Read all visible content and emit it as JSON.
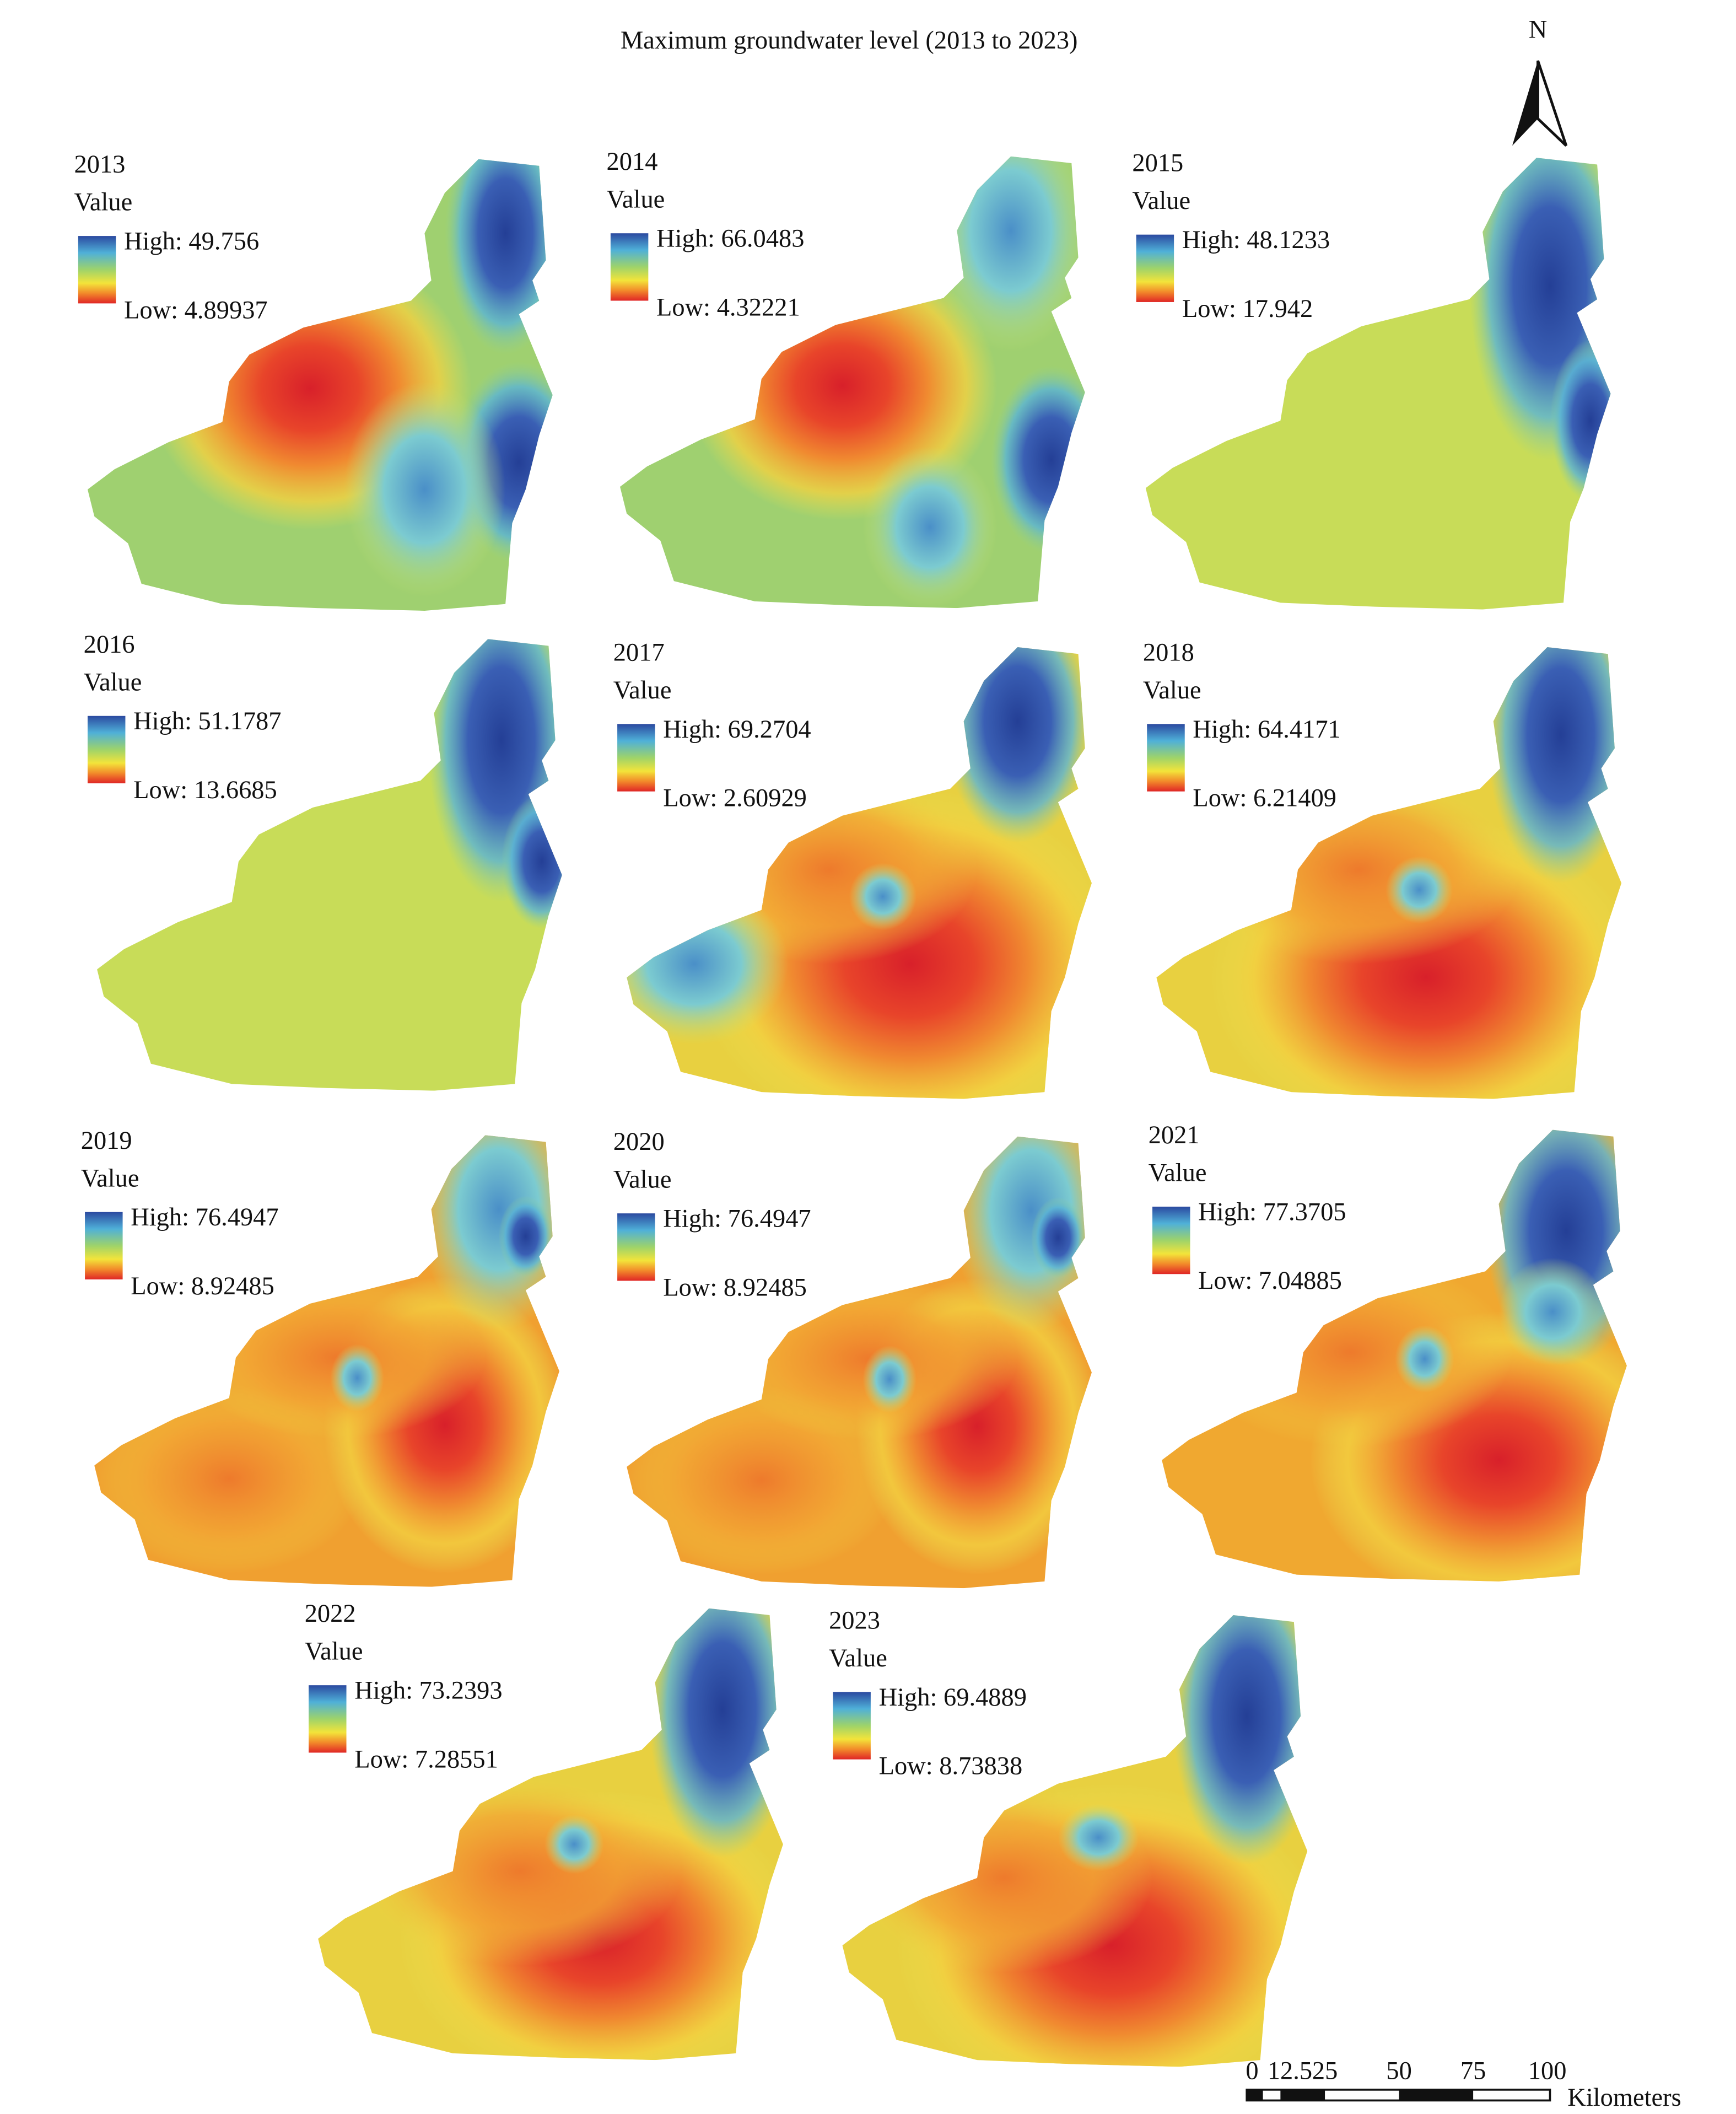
{
  "title": "Maximum groundwater level (2013 to 2023)",
  "north": "N",
  "panels": [
    {
      "year": "2013",
      "value_label": "Value",
      "high": "High: 49.756",
      "low": "Low: 4.89937"
    },
    {
      "year": "2014",
      "value_label": "Value",
      "high": "High: 66.0483",
      "low": "Low: 4.32221"
    },
    {
      "year": "2015",
      "value_label": "Value",
      "high": "High: 48.1233",
      "low": "Low: 17.942"
    },
    {
      "year": "2016",
      "value_label": "Value",
      "high": "High: 51.1787",
      "low": "Low: 13.6685"
    },
    {
      "year": "2017",
      "value_label": "Value",
      "high": "High: 69.2704",
      "low": "Low: 2.60929"
    },
    {
      "year": "2018",
      "value_label": "Value",
      "high": "High: 64.4171",
      "low": "Low: 6.21409"
    },
    {
      "year": "2019",
      "value_label": "Value",
      "high": "High: 76.4947",
      "low": "Low: 8.92485"
    },
    {
      "year": "2020",
      "value_label": "Value",
      "high": "High: 76.4947",
      "low": "Low: 8.92485"
    },
    {
      "year": "2021",
      "value_label": "Value",
      "high": "High: 77.3705",
      "low": "Low: 7.04885"
    },
    {
      "year": "2022",
      "value_label": "Value",
      "high": "High: 73.2393",
      "low": "Low: 7.28551"
    },
    {
      "year": "2023",
      "value_label": "Value",
      "high": "High: 69.4889",
      "low": "Low: 8.73838"
    }
  ],
  "scale_bar": {
    "labels": [
      "0",
      "12.5",
      "25",
      "50",
      "75",
      "100"
    ],
    "unit": "Kilometers"
  }
}
